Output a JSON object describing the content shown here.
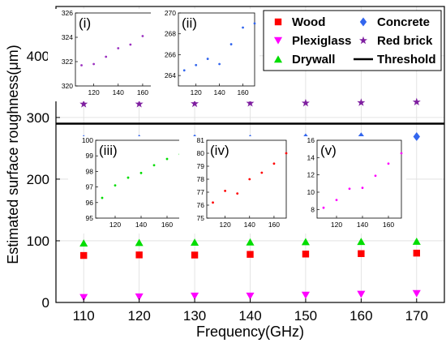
{
  "chart_data": [
    {
      "id": "main",
      "type": "scatter",
      "xlabel": "Frequency(GHz)",
      "ylabel": "Estimated surface roughness(μm)",
      "xlim": [
        105,
        175
      ],
      "ylim": [
        0,
        480
      ],
      "xticks": [
        110,
        120,
        130,
        140,
        150,
        160,
        170
      ],
      "yticks": [
        0,
        100,
        200,
        300,
        400
      ],
      "grid": true,
      "legend_placement": "top-right",
      "x": [
        110,
        120,
        130,
        140,
        150,
        160,
        170
      ],
      "threshold": {
        "name": "Threshold",
        "value": 290,
        "color": "#000000"
      },
      "series": [
        {
          "name": "Wood",
          "marker": "square",
          "color": "#ff0000",
          "values": [
            76.2,
            77.1,
            76.9,
            78.0,
            78.5,
            79.2,
            80.0
          ]
        },
        {
          "name": "Plexiglass",
          "marker": "triangle-down",
          "color": "#ff00ff",
          "values": [
            8.2,
            9.1,
            10.4,
            10.5,
            11.9,
            13.3,
            14.5
          ]
        },
        {
          "name": "Drywall",
          "marker": "triangle-up",
          "color": "#00dd00",
          "values": [
            96.3,
            97.1,
            97.6,
            97.9,
            98.4,
            98.8,
            99.1
          ]
        },
        {
          "name": "Concrete",
          "marker": "diamond",
          "color": "#3366ee",
          "values": [
            264.5,
            265.0,
            265.6,
            265.1,
            267.0,
            268.6,
            269.0
          ]
        },
        {
          "name": "Red brick",
          "marker": "star",
          "color": "#7f1fa0",
          "values": [
            321.7,
            321.8,
            322.4,
            323.1,
            323.4,
            324.1,
            325.1
          ]
        }
      ]
    },
    {
      "id": "inset-i",
      "label": "(i)",
      "type": "scatter",
      "color": "#9b30c0",
      "xlim": [
        105,
        170
      ],
      "ylim": [
        320,
        326
      ],
      "xticks": [
        120,
        140,
        160
      ],
      "yticks": [
        320,
        322,
        324,
        326
      ],
      "x": [
        110,
        120,
        130,
        140,
        150,
        160,
        170
      ],
      "values": [
        321.7,
        321.8,
        322.4,
        323.1,
        323.4,
        324.1,
        325.1
      ]
    },
    {
      "id": "inset-ii",
      "label": "(ii)",
      "type": "scatter",
      "color": "#3366ee",
      "xlim": [
        105,
        170
      ],
      "ylim": [
        263,
        270
      ],
      "xticks": [
        120,
        140,
        160
      ],
      "yticks": [
        264,
        266,
        268,
        270
      ],
      "x": [
        110,
        120,
        130,
        140,
        150,
        160,
        170
      ],
      "values": [
        264.5,
        265.0,
        265.6,
        265.1,
        267.0,
        268.6,
        269.0
      ]
    },
    {
      "id": "inset-iii",
      "label": "(iii)",
      "type": "scatter",
      "color": "#00dd00",
      "xlim": [
        105,
        170
      ],
      "ylim": [
        95,
        100
      ],
      "xticks": [
        120,
        140,
        160
      ],
      "yticks": [
        95,
        96,
        97,
        98,
        99,
        100
      ],
      "x": [
        110,
        120,
        130,
        140,
        150,
        160,
        170
      ],
      "values": [
        96.3,
        97.1,
        97.6,
        97.9,
        98.4,
        98.8,
        99.1
      ]
    },
    {
      "id": "inset-iv",
      "label": "(iv)",
      "type": "scatter",
      "color": "#ff0000",
      "xlim": [
        105,
        170
      ],
      "ylim": [
        75,
        81
      ],
      "xticks": [
        120,
        140,
        160
      ],
      "yticks": [
        75,
        76,
        77,
        78,
        79,
        80,
        81
      ],
      "x": [
        110,
        120,
        130,
        140,
        150,
        160,
        170
      ],
      "values": [
        76.2,
        77.1,
        76.9,
        78.0,
        78.5,
        79.2,
        80.0
      ]
    },
    {
      "id": "inset-v",
      "label": "(v)",
      "type": "scatter",
      "color": "#ff00ff",
      "xlim": [
        105,
        170
      ],
      "ylim": [
        7,
        16
      ],
      "xticks": [
        120,
        140,
        160
      ],
      "yticks": [
        8,
        10,
        12,
        14,
        16
      ],
      "x": [
        110,
        120,
        130,
        140,
        150,
        160,
        170
      ],
      "values": [
        8.2,
        9.1,
        10.4,
        10.5,
        11.9,
        13.3,
        14.5
      ]
    }
  ]
}
